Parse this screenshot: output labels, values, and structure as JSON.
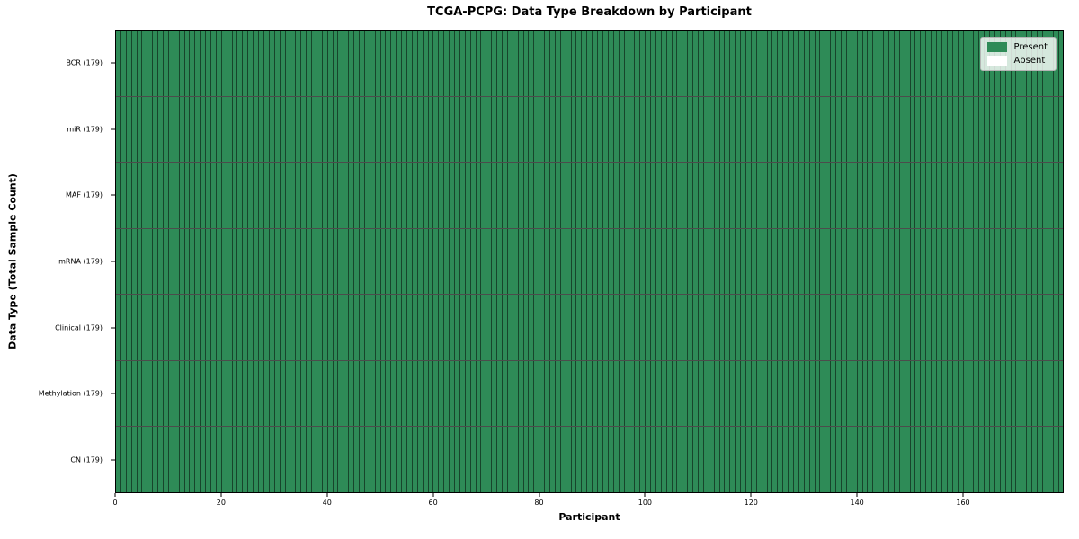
{
  "chart_data": {
    "type": "heatmap",
    "title": "TCGA-PCPG: Data Type Breakdown by Participant",
    "xlabel": "Participant",
    "ylabel": "Data Type (Total Sample Count)",
    "x_range": [
      0,
      179
    ],
    "x_ticks": [
      0,
      20,
      40,
      60,
      80,
      100,
      120,
      140,
      160
    ],
    "n_participants": 179,
    "rows": [
      {
        "label": "BCR (179)",
        "data_type": "BCR",
        "total_samples": 179,
        "present": 179,
        "absent": 0
      },
      {
        "label": "miR (179)",
        "data_type": "miR",
        "total_samples": 179,
        "present": 179,
        "absent": 0
      },
      {
        "label": "MAF (179)",
        "data_type": "MAF",
        "total_samples": 179,
        "present": 179,
        "absent": 0
      },
      {
        "label": "mRNA (179)",
        "data_type": "mRNA",
        "total_samples": 179,
        "present": 179,
        "absent": 0
      },
      {
        "label": "Clinical (179)",
        "data_type": "Clinical",
        "total_samples": 179,
        "present": 179,
        "absent": 0
      },
      {
        "label": "Methylation (179)",
        "data_type": "Methylation",
        "total_samples": 179,
        "present": 179,
        "absent": 0
      },
      {
        "label": "CN (179)",
        "data_type": "CN",
        "total_samples": 179,
        "present": 179,
        "absent": 0
      }
    ],
    "legend_items": [
      {
        "label": "Present",
        "color": "#2e8b57"
      },
      {
        "label": "Absent",
        "color": "#ffffff"
      }
    ],
    "legend_position": "upper right",
    "grid": false,
    "colors": {
      "present": "#2e8b57",
      "absent": "#ffffff",
      "cell_edge": "rgba(0,0,0,0.5)",
      "row_divider": "rgba(0,0,0,0.7)",
      "spine": "#000000",
      "background": "#ffffff"
    }
  }
}
